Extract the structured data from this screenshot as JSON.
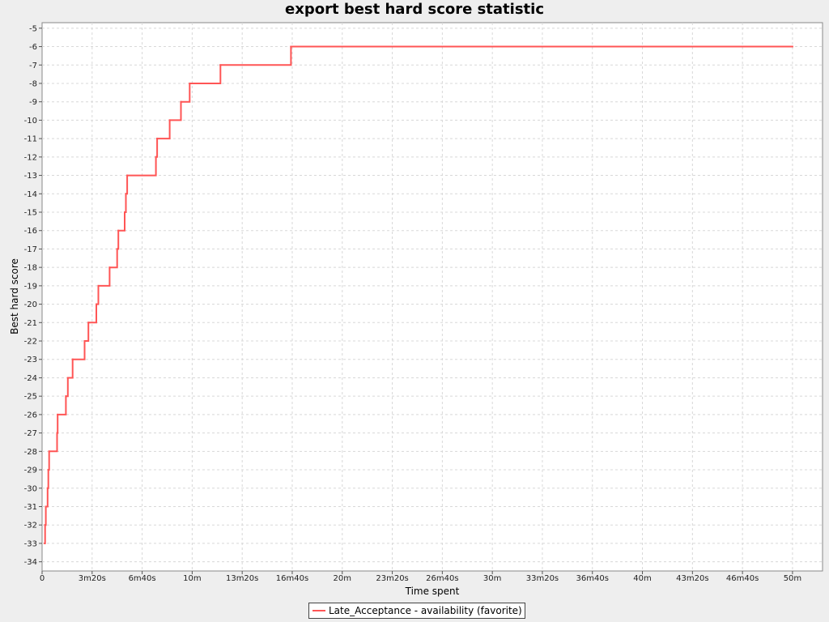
{
  "chart_data": {
    "type": "line",
    "title": "export best hard score statistic",
    "xlabel": "Time spent",
    "ylabel": "Best hard score",
    "xlim": [
      0,
      3120
    ],
    "ylim": [
      -34.5,
      -4.7
    ],
    "grid": true,
    "legend_position": "bottom",
    "x_ticks": [
      {
        "value": 0,
        "label": "0"
      },
      {
        "value": 200,
        "label": "3m20s"
      },
      {
        "value": 400,
        "label": "6m40s"
      },
      {
        "value": 600,
        "label": "10m"
      },
      {
        "value": 800,
        "label": "13m20s"
      },
      {
        "value": 1000,
        "label": "16m40s"
      },
      {
        "value": 1200,
        "label": "20m"
      },
      {
        "value": 1400,
        "label": "23m20s"
      },
      {
        "value": 1600,
        "label": "26m40s"
      },
      {
        "value": 1800,
        "label": "30m"
      },
      {
        "value": 2000,
        "label": "33m20s"
      },
      {
        "value": 2200,
        "label": "36m40s"
      },
      {
        "value": 2400,
        "label": "40m"
      },
      {
        "value": 2600,
        "label": "43m20s"
      },
      {
        "value": 2800,
        "label": "46m40s"
      },
      {
        "value": 3000,
        "label": "50m"
      }
    ],
    "y_ticks": [
      {
        "value": -5,
        "label": "-5"
      },
      {
        "value": -6,
        "label": "-6"
      },
      {
        "value": -7,
        "label": "-7"
      },
      {
        "value": -8,
        "label": "-8"
      },
      {
        "value": -9,
        "label": "-9"
      },
      {
        "value": -10,
        "label": "-10"
      },
      {
        "value": -11,
        "label": "-11"
      },
      {
        "value": -12,
        "label": "-12"
      },
      {
        "value": -13,
        "label": "-13"
      },
      {
        "value": -14,
        "label": "-14"
      },
      {
        "value": -15,
        "label": "-15"
      },
      {
        "value": -16,
        "label": "-16"
      },
      {
        "value": -17,
        "label": "-17"
      },
      {
        "value": -18,
        "label": "-18"
      },
      {
        "value": -19,
        "label": "-19"
      },
      {
        "value": -20,
        "label": "-20"
      },
      {
        "value": -21,
        "label": "-21"
      },
      {
        "value": -22,
        "label": "-22"
      },
      {
        "value": -23,
        "label": "-23"
      },
      {
        "value": -24,
        "label": "-24"
      },
      {
        "value": -25,
        "label": "-25"
      },
      {
        "value": -26,
        "label": "-26"
      },
      {
        "value": -27,
        "label": "-27"
      },
      {
        "value": -28,
        "label": "-28"
      },
      {
        "value": -29,
        "label": "-29"
      },
      {
        "value": -30,
        "label": "-30"
      },
      {
        "value": -31,
        "label": "-31"
      },
      {
        "value": -32,
        "label": "-32"
      },
      {
        "value": -33,
        "label": "-33"
      },
      {
        "value": -34,
        "label": "-34"
      }
    ],
    "series": [
      {
        "name": "Late_Acceptance - availability (favorite)",
        "color": "#ff5555",
        "step": true,
        "points": [
          [
            10,
            -33
          ],
          [
            12,
            -32
          ],
          [
            15,
            -31
          ],
          [
            22,
            -30
          ],
          [
            25,
            -29
          ],
          [
            28,
            -28
          ],
          [
            60,
            -27
          ],
          [
            62,
            -26
          ],
          [
            95,
            -25
          ],
          [
            103,
            -24
          ],
          [
            122,
            -23
          ],
          [
            170,
            -22
          ],
          [
            185,
            -21
          ],
          [
            217,
            -20
          ],
          [
            225,
            -19
          ],
          [
            270,
            -18
          ],
          [
            300,
            -17
          ],
          [
            305,
            -16
          ],
          [
            330,
            -15
          ],
          [
            335,
            -14
          ],
          [
            340,
            -13
          ],
          [
            455,
            -12
          ],
          [
            460,
            -11
          ],
          [
            510,
            -10
          ],
          [
            555,
            -9
          ],
          [
            590,
            -8
          ],
          [
            713,
            -7
          ],
          [
            995,
            -6
          ],
          [
            3000,
            -6
          ]
        ]
      }
    ]
  }
}
